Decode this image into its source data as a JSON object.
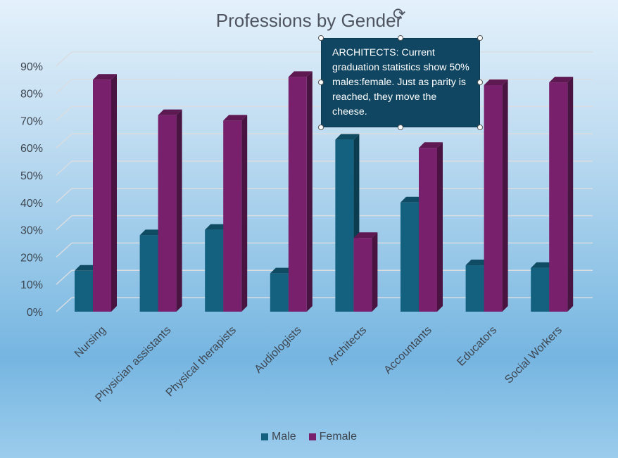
{
  "chart_data": {
    "type": "bar",
    "title": "Professions by Gender",
    "categories": [
      "Nursing",
      "Physician assistants",
      "Physical therapists",
      "Audiologists",
      "Architects",
      "Accountants",
      "Educators",
      "Social Workers"
    ],
    "series": [
      {
        "name": "Male",
        "values": [
          15,
          28,
          30,
          14,
          63,
          40,
          17,
          16
        ]
      },
      {
        "name": "Female",
        "values": [
          85,
          72,
          70,
          86,
          27,
          60,
          83,
          84
        ]
      }
    ],
    "ylim": [
      0,
      90
    ],
    "yticks": [
      "0%",
      "10%",
      "20%",
      "30%",
      "40%",
      "50%",
      "60%",
      "70%",
      "80%",
      "90%"
    ],
    "grid": true,
    "legend": "bottom",
    "annotation": "ARCHITECTS: Current graduation statistics show 50% males:female. Just as parity is reached, they move the cheese."
  },
  "colors": {
    "male": "#13607f",
    "female": "#78206b"
  }
}
